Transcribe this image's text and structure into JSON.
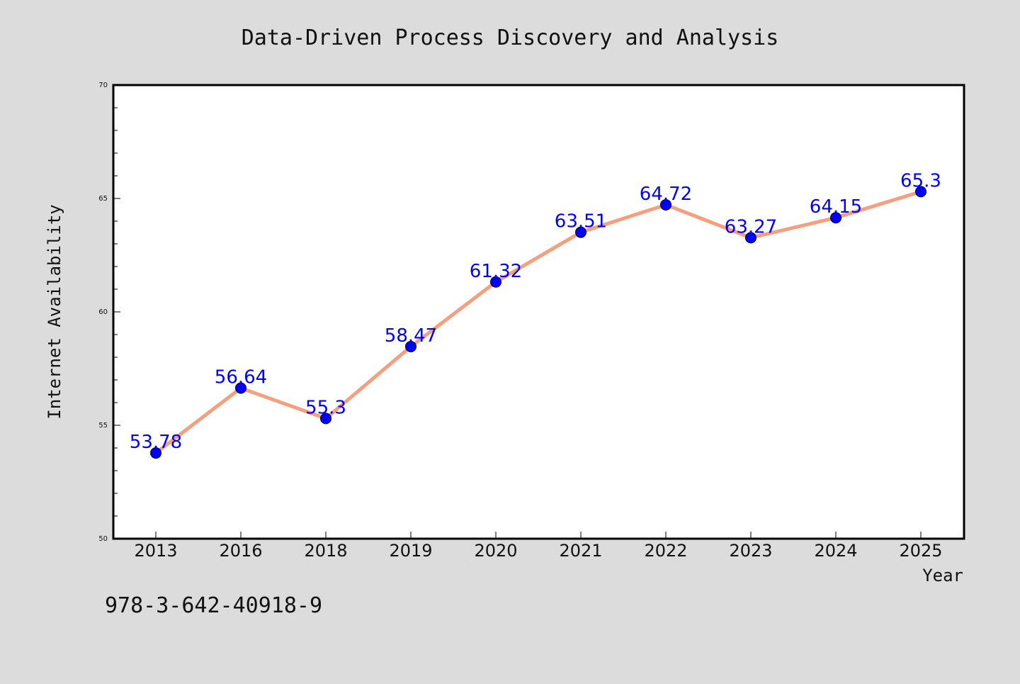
{
  "colors": {
    "background": "#dcdcdc",
    "plot_background": "#ffffff",
    "line": "#f4a07e",
    "marker": "#0000ff",
    "data_label": "#0000ff",
    "axis": "#000000"
  },
  "footer": {
    "isbn": "978-3-642-40918-9"
  },
  "chart_data": {
    "type": "line",
    "title": "Data-Driven Process Discovery and Analysis",
    "xlabel": "Year",
    "ylabel": "Internet Availability",
    "categories": [
      "2013",
      "2016",
      "2018",
      "2019",
      "2020",
      "2021",
      "2022",
      "2023",
      "2024",
      "2025"
    ],
    "series": [
      {
        "values": [
          53.78,
          56.64,
          55.3,
          58.47,
          61.32,
          63.51,
          64.72,
          63.27,
          64.15,
          65.3
        ],
        "data_labels": [
          "53.78",
          "56.64",
          "55.3",
          "58.47",
          "61.32",
          "63.51",
          "64.72",
          "63.27",
          "64.15",
          "65.3"
        ]
      }
    ],
    "ylim": [
      50,
      70
    ],
    "yticks": [
      50,
      55,
      60,
      65,
      70
    ],
    "yticks_minor_step": 1,
    "grid": false,
    "legend": "none"
  }
}
